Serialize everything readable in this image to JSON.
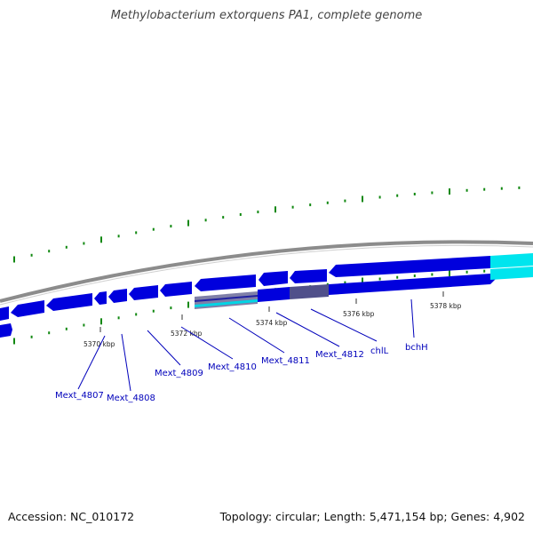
{
  "title": "Methylobacterium extorquens PA1, complete genome",
  "footer": {
    "accession": "Accession: NC_010172",
    "summary": "Topology: circular; Length: 5,471,154 bp; Genes: 4,902"
  },
  "colors": {
    "backbone": "#888888",
    "gene_dark": "#0000dd",
    "gene_light": "#3d3df0",
    "gene_highlight": "#00e5ee",
    "skew_tick": "#118811",
    "label": "#0000bb",
    "callout_line": "#0000bb"
  },
  "scale_ticks": [
    "5370 kbp",
    "5372 kbp",
    "5374 kbp",
    "5376 kbp",
    "5378 kbp"
  ],
  "gene_labels": [
    "Mext_4807",
    "Mext_4808",
    "Mext_4809",
    "Mext_4810",
    "Mext_4811",
    "Mext_4812",
    "chlL",
    "bchH"
  ]
}
